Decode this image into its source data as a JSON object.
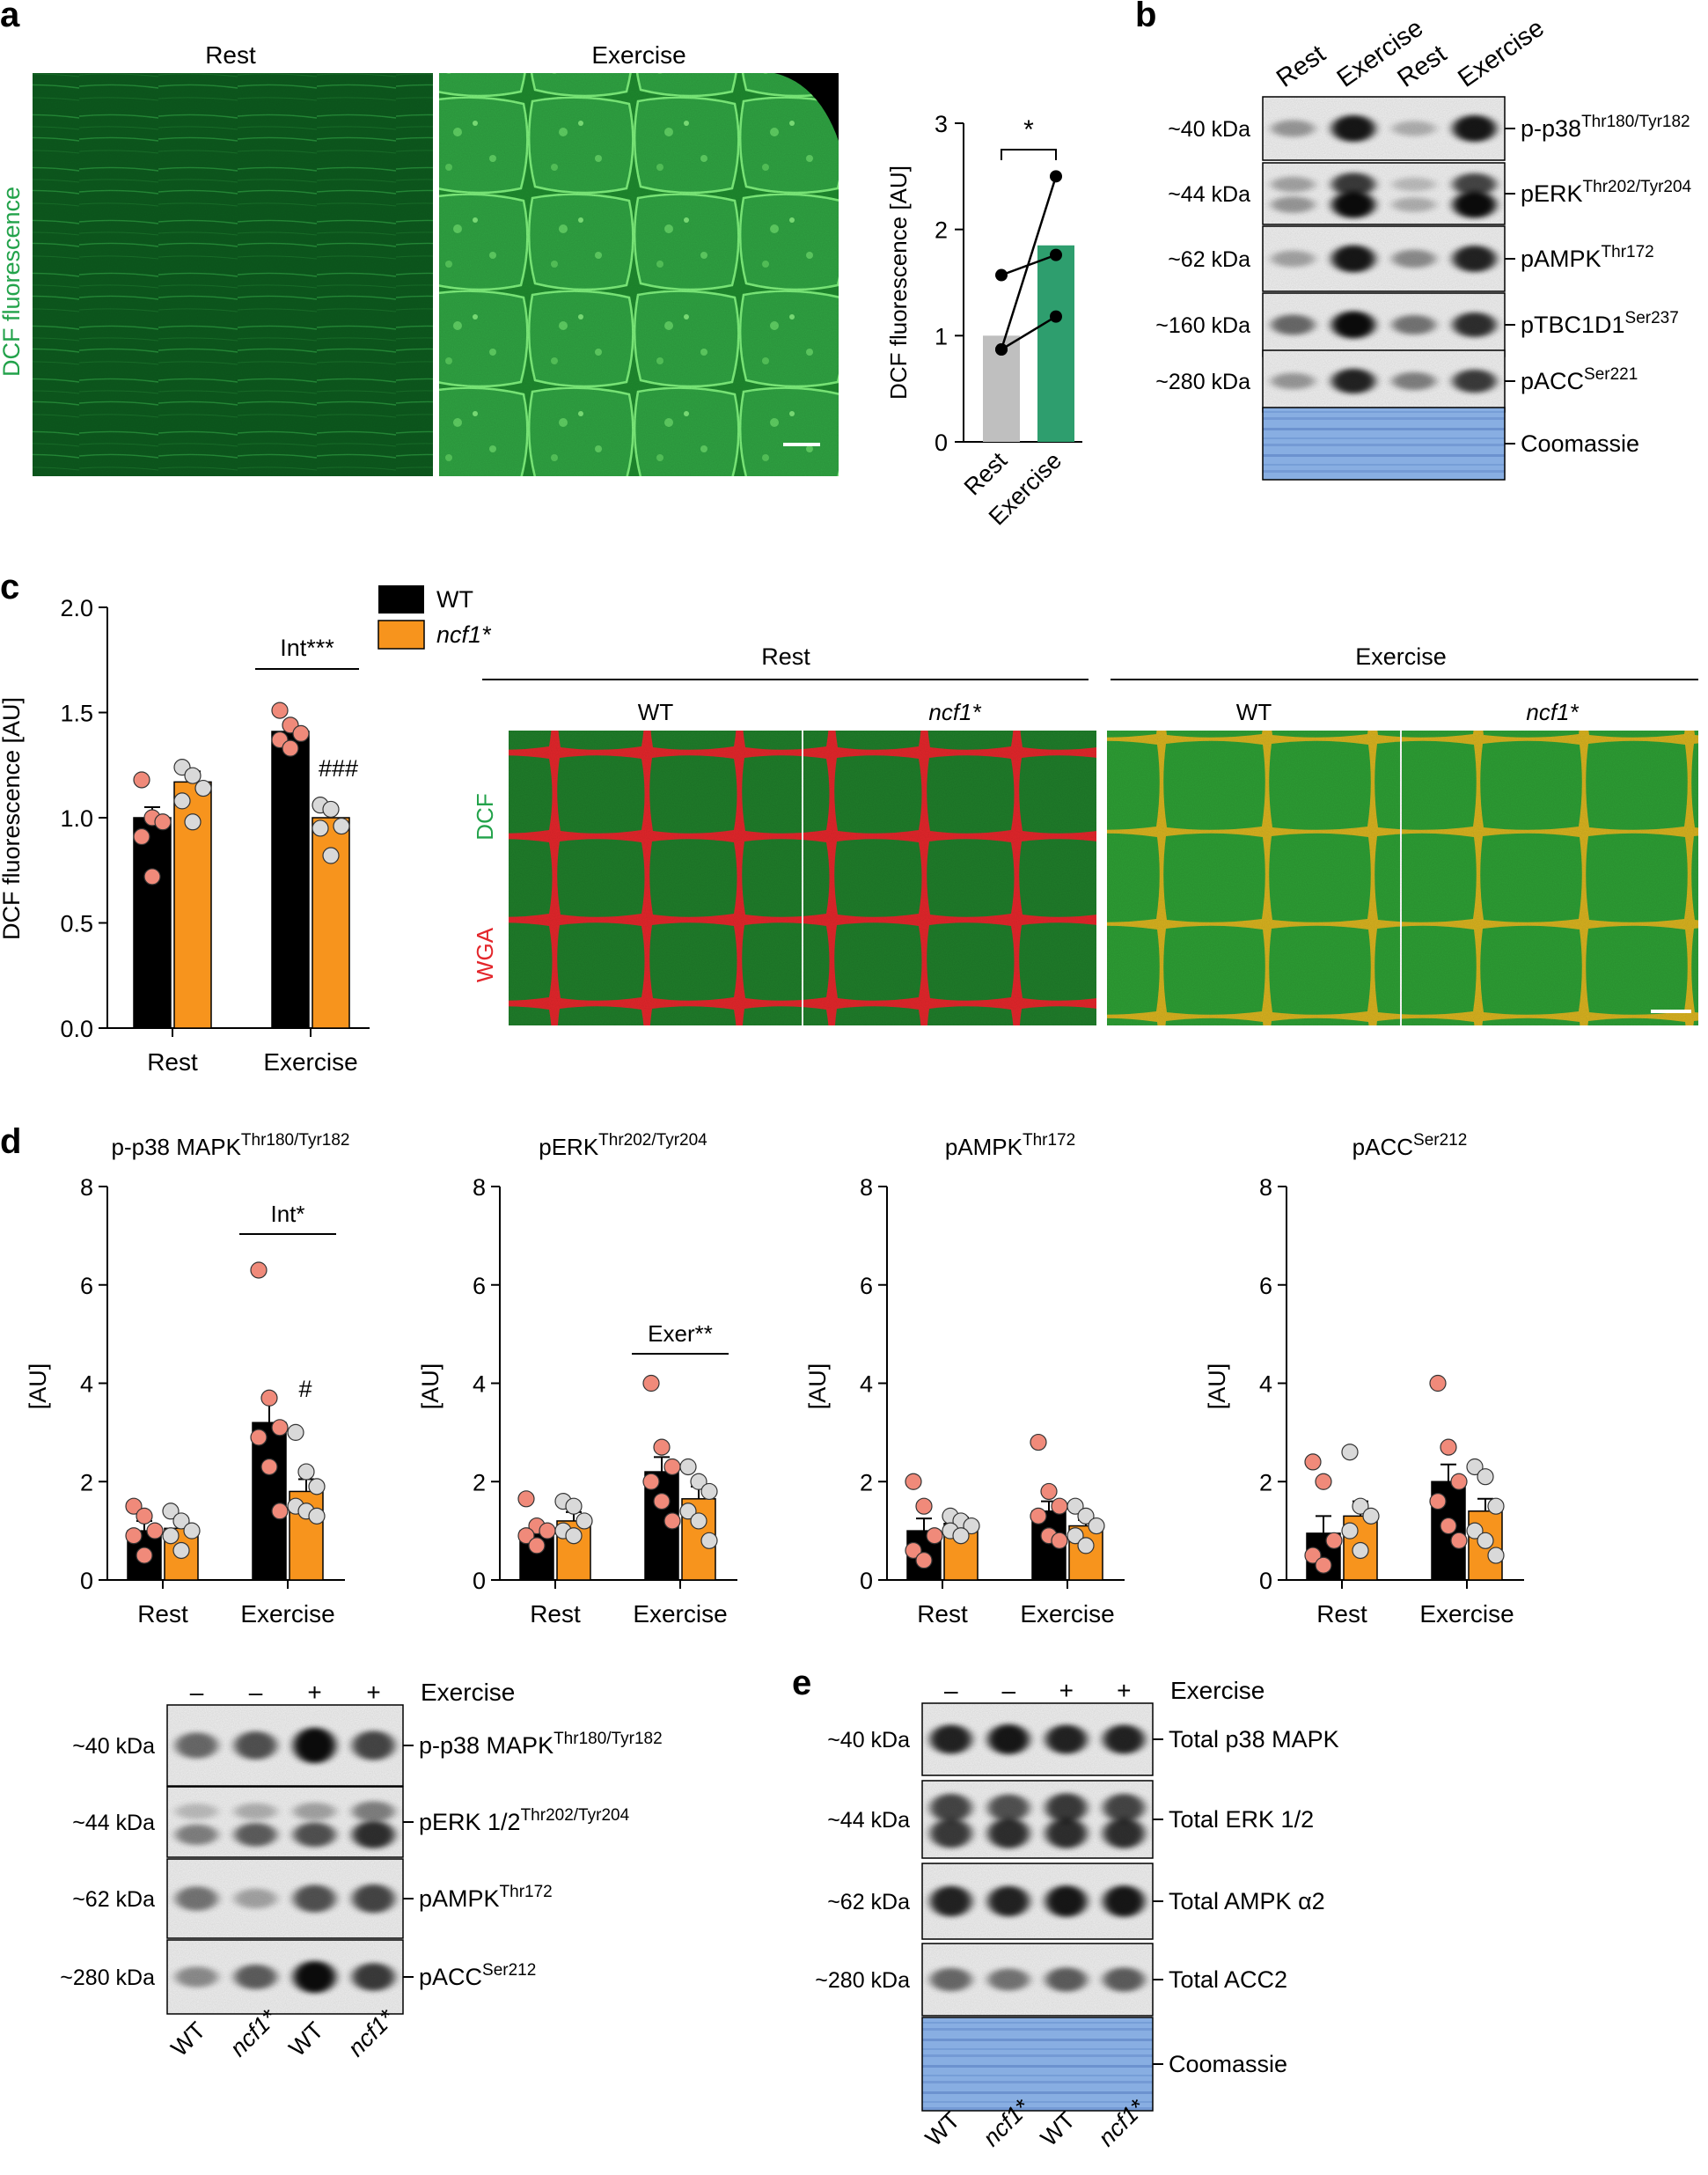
{
  "colors": {
    "rest_bar": "#bfbfbf",
    "exercise_bar": "#2e9e6e",
    "wt": "#000000",
    "ncf1": "#f7941d",
    "wt_point": "#f08a7a",
    "ncf1_point": "#d9d9d9",
    "green": "#22a24a",
    "red": "#e3262b",
    "coomassie": "#7fa8de"
  },
  "panel_labels": {
    "a": "a",
    "b": "b",
    "c": "c",
    "d": "d",
    "e": "e"
  },
  "panel_a": {
    "image_titles": [
      "Rest",
      "Exercise"
    ],
    "side_label": "DCF fluorescence",
    "image_icons": [
      "green-fluorescence-micrograph-rest-icon",
      "green-fluorescence-micrograph-exercise-icon"
    ],
    "chart_data": {
      "type": "bar",
      "categories": [
        "Rest",
        "Exercise"
      ],
      "values": [
        1.0,
        1.85
      ],
      "paired_points": [
        [
          0.87,
          1.18
        ],
        [
          1.57,
          1.76
        ],
        [
          0.87,
          2.5
        ]
      ],
      "ylabel": "DCF fluorescence [AU]",
      "ylim": [
        0,
        3
      ],
      "yticks": [
        "0",
        "1",
        "2",
        "3"
      ],
      "significance": "*"
    }
  },
  "panel_b": {
    "lane_labels": [
      "Rest",
      "Exercise",
      "Rest",
      "Exercise"
    ],
    "rows": [
      {
        "kda": "~40 kDa",
        "name": "p-p38",
        "sup": "Thr180/Tyr182"
      },
      {
        "kda": "~44 kDa",
        "name": "pERK",
        "sup": "Thr202/Tyr204"
      },
      {
        "kda": "~62 kDa",
        "name": "pAMPK",
        "sup": "Thr172"
      },
      {
        "kda": "~160 kDa",
        "name": "pTBC1D1",
        "sup": "Ser237"
      },
      {
        "kda": "~280 kDa",
        "name": "pACC",
        "sup": "Ser221"
      },
      {
        "kda": "",
        "name": "Coomassie",
        "sup": ""
      }
    ]
  },
  "panel_c": {
    "legend": [
      {
        "name": "WT",
        "italic": false
      },
      {
        "name": "ncf1*",
        "italic": true
      }
    ],
    "chart_data": {
      "type": "bar",
      "categories": [
        "Rest",
        "Exercise"
      ],
      "series": [
        {
          "name": "WT",
          "values": [
            1.0,
            1.41
          ],
          "sem": [
            0.05,
            0.04
          ],
          "points": [
            [
              1.18,
              1.0,
              0.98,
              0.91,
              0.72
            ],
            [
              1.51,
              1.44,
              1.4,
              1.37,
              1.33
            ]
          ]
        },
        {
          "name": "ncf1*",
          "values": [
            1.17,
            1.0
          ],
          "sem": [
            0.05,
            0.05
          ],
          "points": [
            [
              1.24,
              1.2,
              1.14,
              1.08,
              0.98
            ],
            [
              1.06,
              1.04,
              0.96,
              0.95,
              0.82
            ]
          ]
        }
      ],
      "ylabel": "DCF fluorescence [AU]",
      "ylim": [
        0,
        2
      ],
      "yticks": [
        "0.0",
        "0.5",
        "1.0",
        "1.5",
        "2.0"
      ],
      "annotations": [
        "Int***",
        "###"
      ]
    },
    "micrograph": {
      "group_titles": [
        "Rest",
        "Exercise"
      ],
      "sub_titles": [
        {
          "text": "WT",
          "italic": false
        },
        {
          "text": "ncf1*",
          "italic": true
        },
        {
          "text": "WT",
          "italic": false
        },
        {
          "text": "ncf1*",
          "italic": true
        }
      ],
      "stain_labels": [
        "DCF",
        "WGA"
      ]
    }
  },
  "panel_d": {
    "charts": [
      {
        "title": "p-p38 MAPK",
        "sup": "Thr180/Tyr182",
        "ylabel": "[AU]",
        "ylim": [
          0,
          8
        ],
        "yticks": [
          "0",
          "2",
          "4",
          "6",
          "8"
        ],
        "categories": [
          "Rest",
          "Exercise"
        ],
        "series": [
          {
            "name": "WT",
            "values": [
              1.0,
              3.2
            ],
            "sem": [
              0.2,
              0.55
            ]
          },
          {
            "name": "ncf1*",
            "values": [
              1.05,
              1.8
            ],
            "sem": [
              0.2,
              0.25
            ]
          }
        ],
        "points": [
          [
            [
              1.5,
              1.3,
              1.0,
              0.9,
              0.5
            ],
            [
              6.3,
              3.7,
              3.1,
              2.9,
              2.3,
              1.4
            ]
          ],
          [
            [
              1.4,
              1.2,
              1.0,
              0.9,
              0.6
            ],
            [
              3.0,
              2.2,
              1.9,
              1.5,
              1.4,
              1.3
            ]
          ]
        ],
        "annotations": [
          "Int*",
          "#"
        ],
        "bracket": true
      },
      {
        "title": "pERK",
        "sup": "Thr202/Tyr204",
        "ylabel": "[AU]",
        "ylim": [
          0,
          8
        ],
        "yticks": [
          "0",
          "2",
          "4",
          "6",
          "8"
        ],
        "categories": [
          "Rest",
          "Exercise"
        ],
        "series": [
          {
            "name": "WT",
            "values": [
              1.0,
              2.2
            ],
            "sem": [
              0.15,
              0.3
            ]
          },
          {
            "name": "ncf1*",
            "values": [
              1.2,
              1.65
            ],
            "sem": [
              0.18,
              0.25
            ]
          }
        ],
        "points": [
          [
            [
              1.65,
              1.1,
              1.0,
              0.9,
              0.7
            ],
            [
              4.0,
              2.7,
              2.3,
              2.0,
              1.6,
              1.2
            ]
          ],
          [
            [
              1.6,
              1.5,
              1.2,
              1.0,
              0.9
            ],
            [
              2.3,
              2.0,
              1.8,
              1.4,
              1.2,
              0.8
            ]
          ]
        ],
        "annotations": [
          "Exer**"
        ],
        "bracket": true
      },
      {
        "title": "pAMPK",
        "sup": "Thr172",
        "ylabel": "[AU]",
        "ylim": [
          0,
          8
        ],
        "yticks": [
          "0",
          "2",
          "4",
          "6",
          "8"
        ],
        "categories": [
          "Rest",
          "Exercise"
        ],
        "series": [
          {
            "name": "WT",
            "values": [
              1.0,
              1.4
            ],
            "sem": [
              0.25,
              0.2
            ]
          },
          {
            "name": "ncf1*",
            "values": [
              1.15,
              1.1
            ],
            "sem": [
              0.12,
              0.12
            ]
          }
        ],
        "points": [
          [
            [
              2.0,
              1.5,
              0.9,
              0.6,
              0.4
            ],
            [
              2.8,
              1.8,
              1.5,
              1.3,
              0.9,
              0.8
            ]
          ],
          [
            [
              1.3,
              1.2,
              1.1,
              1.0,
              0.9
            ],
            [
              1.5,
              1.3,
              1.1,
              0.9,
              0.7
            ]
          ]
        ],
        "annotations": [],
        "bracket": false
      },
      {
        "title": "pACC",
        "sup": "Ser212",
        "ylabel": "[AU]",
        "ylim": [
          0,
          8
        ],
        "yticks": [
          "0",
          "2",
          "4",
          "6",
          "8"
        ],
        "categories": [
          "Rest",
          "Exercise"
        ],
        "series": [
          {
            "name": "WT",
            "values": [
              0.95,
              2.0
            ],
            "sem": [
              0.35,
              0.35
            ]
          },
          {
            "name": "ncf1*",
            "values": [
              1.3,
              1.4
            ],
            "sem": [
              0.3,
              0.25
            ]
          }
        ],
        "points": [
          [
            [
              2.4,
              2.0,
              0.8,
              0.5,
              0.3
            ],
            [
              4.0,
              2.7,
              2.0,
              1.6,
              1.1,
              0.8
            ]
          ],
          [
            [
              2.6,
              1.5,
              1.3,
              1.0,
              0.6
            ],
            [
              2.3,
              2.1,
              1.5,
              1.0,
              0.8,
              0.5
            ]
          ]
        ],
        "annotations": [],
        "bracket": false
      }
    ],
    "blot": {
      "exercise_label": "Exercise",
      "signs": [
        "–",
        "–",
        "+",
        "+"
      ],
      "rows": [
        {
          "kda": "~40 kDa",
          "name": "p-p38 MAPK",
          "sup": "Thr180/Tyr182"
        },
        {
          "kda": "~44 kDa",
          "name": "pERK 1/2",
          "sup": "Thr202/Tyr204"
        },
        {
          "kda": "~62 kDa",
          "name": "pAMPK",
          "sup": "Thr172"
        },
        {
          "kda": "~280 kDa",
          "name": "pACC",
          "sup": "Ser212"
        }
      ],
      "lane_labels": [
        {
          "text": "WT",
          "italic": false
        },
        {
          "text": "ncf1*",
          "italic": true
        },
        {
          "text": "WT",
          "italic": false
        },
        {
          "text": "ncf1*",
          "italic": true
        }
      ]
    }
  },
  "panel_e": {
    "exercise_label": "Exercise",
    "signs": [
      "–",
      "–",
      "+",
      "+"
    ],
    "rows": [
      {
        "kda": "~40 kDa",
        "name": "Total p38 MAPK"
      },
      {
        "kda": "~44 kDa",
        "name": "Total ERK 1/2"
      },
      {
        "kda": "~62 kDa",
        "name": "Total AMPK α2"
      },
      {
        "kda": "~280 kDa",
        "name": "Total ACC2"
      },
      {
        "kda": "",
        "name": "Coomassie"
      }
    ],
    "lane_labels": [
      {
        "text": "WT",
        "italic": false
      },
      {
        "text": "ncf1*",
        "italic": true
      },
      {
        "text": "WT",
        "italic": false
      },
      {
        "text": "ncf1*",
        "italic": true
      }
    ]
  }
}
